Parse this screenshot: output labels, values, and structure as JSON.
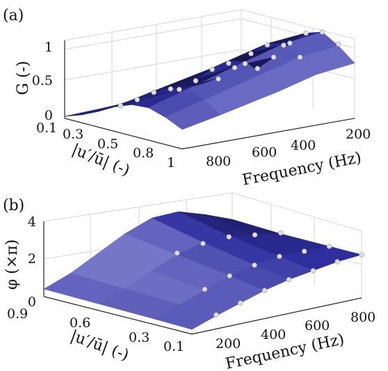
{
  "chart_data": [
    {
      "type": "surface3d",
      "panel_label": "(a)",
      "zlabel": "G (-)",
      "ylabel": "|u′/ū| (-)",
      "xlabel": "Frequency (Hz)",
      "ztick_labels": [
        "0",
        "0.5",
        "1"
      ],
      "ytick_labels": [
        "0.1",
        "0.3",
        "0.5",
        "0.8",
        "1"
      ],
      "xtick_labels": [
        "800",
        "600",
        "400",
        "200"
      ],
      "zlim": [
        0,
        1.2
      ],
      "ylim": [
        0.1,
        1
      ],
      "xlim": [
        200,
        900
      ],
      "grid": true,
      "surface_color": "#2e2e9e",
      "marker_color": "#e0e0e0",
      "frequency": [
        200,
        300,
        400,
        500,
        600,
        700,
        800,
        900
      ],
      "amplitude": [
        0.1,
        0.3,
        0.5,
        0.8,
        1.0
      ],
      "z": [
        [
          0.85,
          1.05,
          1.2,
          1.12,
          0.9,
          0.62,
          0.38,
          0.22
        ],
        [
          0.78,
          0.98,
          1.12,
          1.06,
          0.86,
          0.58,
          0.34,
          0.18
        ],
        [
          0.62,
          0.82,
          0.95,
          0.9,
          0.72,
          0.48,
          0.28,
          0.12
        ],
        [
          0.42,
          0.58,
          0.68,
          0.64,
          0.52,
          0.34,
          0.18,
          0.06
        ],
        [
          0.3,
          0.42,
          0.5,
          0.48,
          0.38,
          0.24,
          0.12,
          0.03
        ]
      ],
      "markers": [
        {
          "f": 300,
          "a": 0.1,
          "z": 1.08
        },
        {
          "f": 400,
          "a": 0.1,
          "z": 1.2
        },
        {
          "f": 500,
          "a": 0.1,
          "z": 1.12
        },
        {
          "f": 600,
          "a": 0.1,
          "z": 0.9
        },
        {
          "f": 700,
          "a": 0.1,
          "z": 0.62
        },
        {
          "f": 800,
          "a": 0.1,
          "z": 0.38
        },
        {
          "f": 300,
          "a": 0.3,
          "z": 0.98
        },
        {
          "f": 400,
          "a": 0.3,
          "z": 1.1
        },
        {
          "f": 500,
          "a": 0.3,
          "z": 1.04
        },
        {
          "f": 600,
          "a": 0.3,
          "z": 0.84
        },
        {
          "f": 700,
          "a": 0.3,
          "z": 0.56
        },
        {
          "f": 800,
          "a": 0.3,
          "z": 0.32
        },
        {
          "f": 400,
          "a": 0.5,
          "z": 0.92
        },
        {
          "f": 500,
          "a": 0.5,
          "z": 0.86
        },
        {
          "f": 600,
          "a": 0.5,
          "z": 0.7
        },
        {
          "f": 700,
          "a": 0.5,
          "z": 0.46
        },
        {
          "f": 800,
          "a": 0.5,
          "z": 0.26
        },
        {
          "f": 500,
          "a": 0.8,
          "z": 0.62
        },
        {
          "f": 600,
          "a": 0.8,
          "z": 0.5
        },
        {
          "f": 700,
          "a": 0.8,
          "z": 0.32
        },
        {
          "f": 800,
          "a": 0.8,
          "z": 0.16
        }
      ]
    },
    {
      "type": "surface3d",
      "panel_label": "(b)",
      "zlabel": "φ (×π)",
      "ylabel": "|u′/ū| (-)",
      "xlabel": "Frequency (Hz)",
      "ztick_labels": [
        "0",
        "2",
        "4"
      ],
      "ytick_labels": [
        "0.9",
        "0.6",
        "0.3",
        "0.1"
      ],
      "xtick_labels": [
        "200",
        "400",
        "600",
        "800"
      ],
      "zlim": [
        0,
        4
      ],
      "ylim": [
        0.1,
        0.9
      ],
      "xlim": [
        100,
        800
      ],
      "grid": true,
      "surface_color": "#2e2e9e",
      "marker_color": "#e0e0e0",
      "frequency": [
        100,
        200,
        300,
        400,
        500,
        600,
        700,
        800
      ],
      "amplitude": [
        0.9,
        0.6,
        0.3,
        0.1
      ],
      "z": [
        [
          0.4,
          1.0,
          1.8,
          2.6,
          3.2,
          3.3,
          2.9,
          2.4
        ],
        [
          0.35,
          0.9,
          1.6,
          2.2,
          2.6,
          2.7,
          2.5,
          2.3
        ],
        [
          0.3,
          0.8,
          1.3,
          1.8,
          2.1,
          2.3,
          2.3,
          2.3
        ],
        [
          0.25,
          0.7,
          1.1,
          1.5,
          1.8,
          2.0,
          2.2,
          2.3
        ]
      ],
      "markers": [
        {
          "f": 400,
          "a": 0.6,
          "z": 2.3
        },
        {
          "f": 500,
          "a": 0.6,
          "z": 2.55
        },
        {
          "f": 600,
          "a": 0.6,
          "z": 2.65
        },
        {
          "f": 700,
          "a": 0.6,
          "z": 2.5
        },
        {
          "f": 800,
          "a": 0.6,
          "z": 2.35
        },
        {
          "f": 300,
          "a": 0.3,
          "z": 1.35
        },
        {
          "f": 400,
          "a": 0.3,
          "z": 1.8
        },
        {
          "f": 500,
          "a": 0.3,
          "z": 2.1
        },
        {
          "f": 600,
          "a": 0.3,
          "z": 2.3
        },
        {
          "f": 700,
          "a": 0.3,
          "z": 2.3
        },
        {
          "f": 800,
          "a": 0.3,
          "z": 2.3
        },
        {
          "f": 200,
          "a": 0.1,
          "z": 0.75
        },
        {
          "f": 300,
          "a": 0.1,
          "z": 1.1
        },
        {
          "f": 400,
          "a": 0.1,
          "z": 1.5
        },
        {
          "f": 500,
          "a": 0.1,
          "z": 1.8
        },
        {
          "f": 600,
          "a": 0.1,
          "z": 2.0
        },
        {
          "f": 700,
          "a": 0.1,
          "z": 2.2
        },
        {
          "f": 800,
          "a": 0.1,
          "z": 2.3
        }
      ]
    }
  ]
}
